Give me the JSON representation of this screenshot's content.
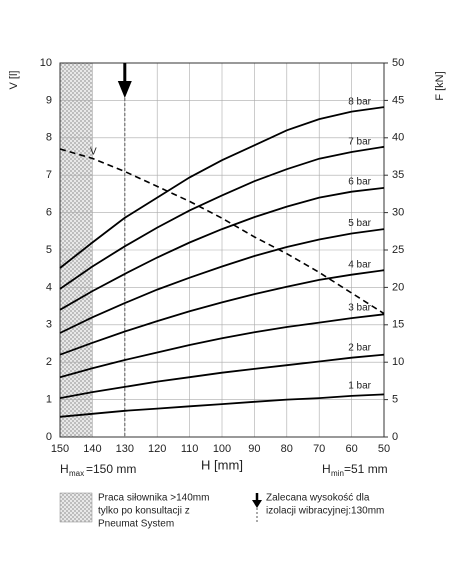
{
  "chart_data": {
    "type": "line",
    "y_label": "V [l]",
    "y2_label": "F [kN]",
    "x_label": "H [mm]",
    "x": [
      150,
      140,
      130,
      120,
      110,
      100,
      90,
      80,
      70,
      60,
      50
    ],
    "xlim": [
      150,
      50
    ],
    "xticks": [
      150,
      140,
      130,
      120,
      110,
      100,
      90,
      80,
      70,
      60,
      50
    ],
    "ylim": [
      0,
      10
    ],
    "yticks": [
      0,
      1,
      2,
      3,
      4,
      5,
      6,
      7,
      8,
      9,
      10
    ],
    "y2lim": [
      0,
      50
    ],
    "y2ticks": [
      0,
      5,
      10,
      15,
      20,
      25,
      30,
      35,
      40,
      45,
      50
    ],
    "grid": true,
    "series": [
      {
        "name": "V",
        "color": "#000000",
        "dashed": true,
        "values": [
          7.7,
          7.45,
          7.1,
          6.7,
          6.3,
          5.85,
          5.35,
          4.9,
          4.4,
          3.85,
          3.3
        ]
      },
      {
        "name": "1 bar",
        "color": "#000000",
        "axis": "y2",
        "values": [
          2.7,
          3.1,
          3.5,
          3.8,
          4.1,
          4.4,
          4.7,
          5,
          5.2,
          5.5,
          5.7
        ]
      },
      {
        "name": "2 bar",
        "color": "#000000",
        "axis": "y2",
        "values": [
          5.2,
          6,
          6.7,
          7.4,
          8,
          8.6,
          9.1,
          9.6,
          10.1,
          10.6,
          11
        ]
      },
      {
        "name": "3 bar",
        "color": "#000000",
        "axis": "y2",
        "values": [
          8,
          9.2,
          10.3,
          11.3,
          12.3,
          13.2,
          14,
          14.7,
          15.3,
          15.9,
          16.4
        ]
      },
      {
        "name": "4 bar",
        "color": "#000000",
        "axis": "y2",
        "values": [
          11,
          12.6,
          14.1,
          15.5,
          16.8,
          18,
          19.1,
          20.1,
          21,
          21.7,
          22.3
        ]
      },
      {
        "name": "5 bar",
        "color": "#000000",
        "axis": "y2",
        "values": [
          13.9,
          16,
          17.9,
          19.7,
          21.3,
          22.8,
          24.2,
          25.4,
          26.4,
          27.2,
          27.8
        ]
      },
      {
        "name": "6 bar",
        "color": "#000000",
        "axis": "y2",
        "values": [
          17,
          19.5,
          21.8,
          24,
          26,
          27.8,
          29.4,
          30.8,
          32,
          32.8,
          33.3
        ]
      },
      {
        "name": "7 bar",
        "color": "#000000",
        "axis": "y2",
        "values": [
          19.8,
          22.8,
          25.5,
          28,
          30.3,
          32.3,
          34.2,
          35.8,
          37.2,
          38.1,
          38.8
        ]
      },
      {
        "name": "8 bar",
        "color": "#000000",
        "axis": "y2",
        "values": [
          22.6,
          26,
          29.3,
          32,
          34.7,
          37,
          39,
          41,
          42.5,
          43.5,
          44.1
        ]
      }
    ],
    "shaded_x": [
      150,
      140
    ],
    "recommended_x": 130,
    "hmax_label": [
      "H",
      "max",
      "=150 mm"
    ],
    "hmin_label": [
      "H",
      "min",
      "=51 mm"
    ],
    "legend_shaded": [
      "Praca siłownika >140mm",
      "tylko po konsultacji z",
      "Pneumat System"
    ],
    "legend_arrow": [
      "Zalecana wysokość dla",
      "izolacji wibracyjnej:130mm"
    ]
  }
}
